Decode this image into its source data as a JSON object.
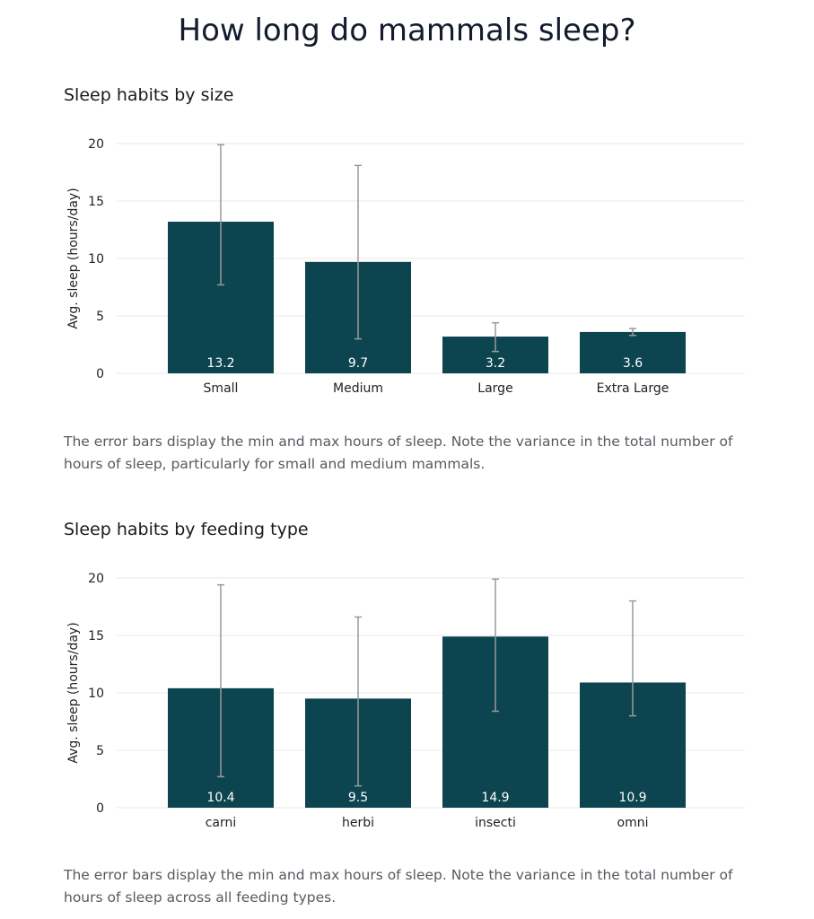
{
  "page_title": "How long do mammals sleep?",
  "colors": {
    "bar": "#0c4450",
    "error_bar": "#9a9a9a",
    "grid": "#e8e8e8",
    "bar_label": "#ffffff"
  },
  "chart_data": [
    {
      "type": "bar",
      "title": "Sleep habits by size",
      "xlabel": "",
      "ylabel": "Avg. sleep (hours/day)",
      "ylim": [
        0,
        20
      ],
      "yticks": [
        0,
        5,
        10,
        15,
        20
      ],
      "categories": [
        "Small",
        "Medium",
        "Large",
        "Extra Large"
      ],
      "values": [
        13.2,
        9.7,
        3.2,
        3.6
      ],
      "value_labels": [
        "13.2",
        "9.7",
        "3.2",
        "3.6"
      ],
      "error_min": [
        7.7,
        3.0,
        1.9,
        3.3
      ],
      "error_max": [
        19.9,
        18.1,
        4.4,
        3.9
      ],
      "caption": "The error bars display the min and max hours of sleep. Note the variance in the total number of hours of sleep, particularly for small and medium mammals."
    },
    {
      "type": "bar",
      "title": "Sleep habits by feeding type",
      "xlabel": "",
      "ylabel": "Avg. sleep (hours/day)",
      "ylim": [
        0,
        20
      ],
      "yticks": [
        0,
        5,
        10,
        15,
        20
      ],
      "categories": [
        "carni",
        "herbi",
        "insecti",
        "omni"
      ],
      "values": [
        10.4,
        9.5,
        14.9,
        10.9
      ],
      "value_labels": [
        "10.4",
        "9.5",
        "14.9",
        "10.9"
      ],
      "error_min": [
        2.7,
        1.9,
        8.4,
        8.0
      ],
      "error_max": [
        19.4,
        16.6,
        19.9,
        18.0
      ],
      "caption": "The error bars display the min and max hours of sleep. Note the variance in the total number of hours of sleep across all feeding types."
    }
  ]
}
